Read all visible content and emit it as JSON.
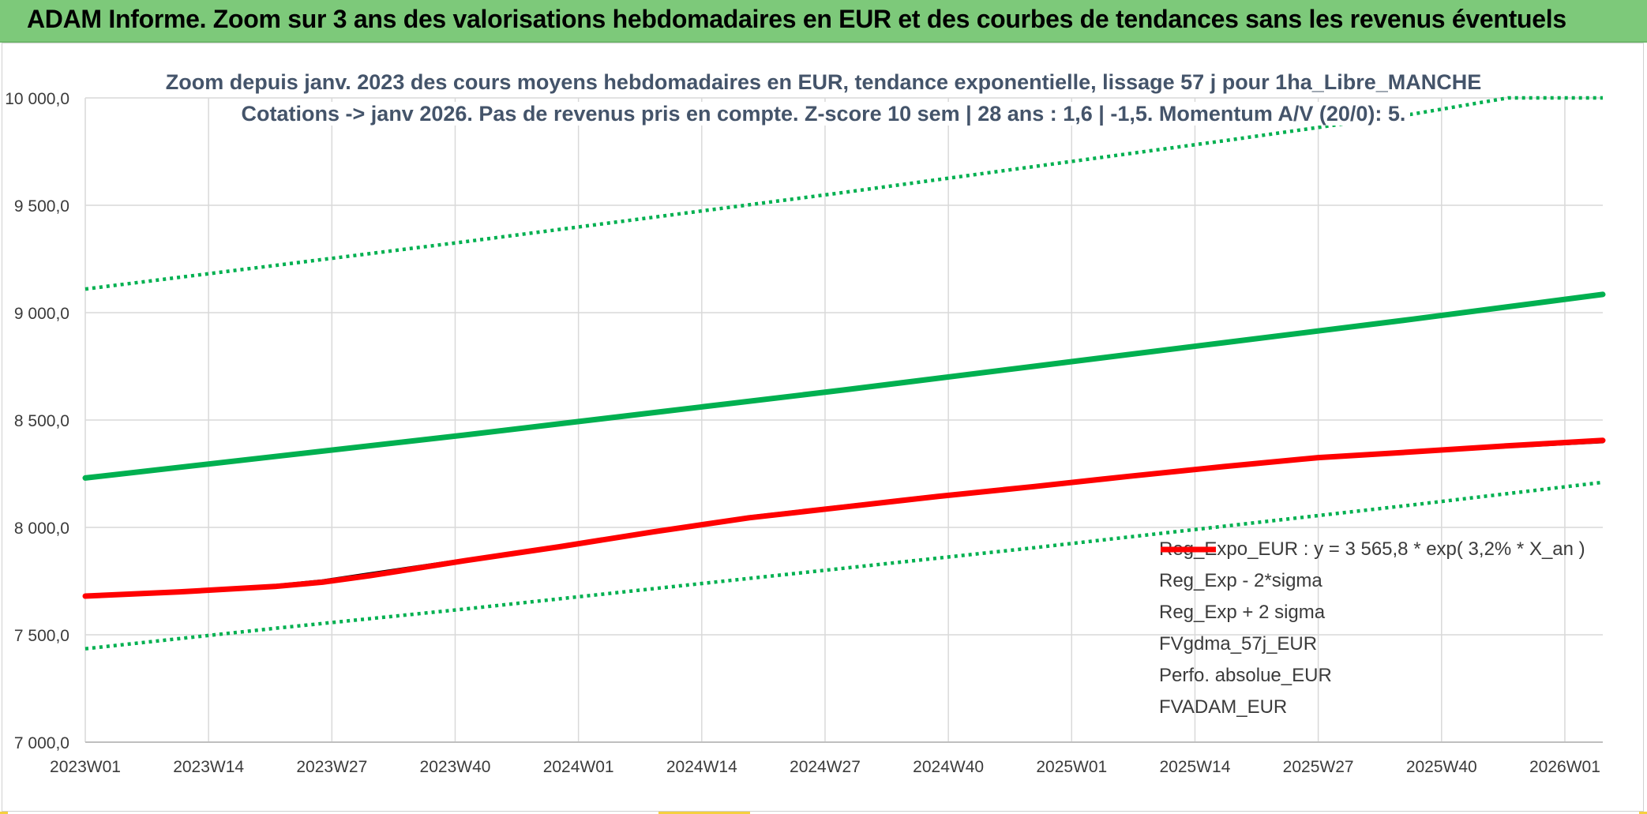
{
  "banner": {
    "title": "ADAM Informe. Zoom sur 3 ans des valorisations hebdomadaires en EUR et des courbes de tendances sans les revenus éventuels"
  },
  "colors": {
    "banner_bg": "#7dc97a",
    "reg_expo": "#00b050",
    "fvgdma": "#000000",
    "perfo": "#c00000",
    "fvadam": "#ff0000",
    "grid": "#d9d9d9",
    "title_text": "#44546a"
  },
  "chart_data": {
    "type": "line",
    "title": "Zoom depuis janv. 2023 des cours moyens hebdomadaires en EUR, tendance exponentielle, lissage 57 j pour 1ha_Libre_MANCHE",
    "subtitle": "Cotations -> janv 2026. Pas de revenus pris en compte. Z-score 10 sem | 28 ans : 1,6 | -1,5. Momentum A/V (20/0): 5.",
    "ylim": [
      7000,
      10000
    ],
    "yticks": [
      7000,
      7500,
      8000,
      8500,
      9000,
      9500,
      10000
    ],
    "ytick_labels": [
      "7 000,0",
      "7 500,0",
      "8 000,0",
      "8 500,0",
      "9 000,0",
      "9 500,0",
      "10 000,0"
    ],
    "xlim": [
      0,
      160
    ],
    "xticks": [
      0,
      13,
      26,
      39,
      52,
      65,
      78,
      91,
      104,
      117,
      130,
      143,
      156
    ],
    "xtick_labels": [
      "2023W01",
      "2023W14",
      "2023W27",
      "2023W40",
      "2024W01",
      "2024W14",
      "2024W27",
      "2024W40",
      "2025W01",
      "2025W14",
      "2025W27",
      "2025W40",
      "2026W01"
    ],
    "legend_position": "bottom-right",
    "series": [
      {
        "name": "Reg_Expo_EUR : y = 3 565,8 * exp( 3,2% *  X_an )",
        "style": "solid-thick",
        "color": "#00b050",
        "x": [
          0,
          20,
          40,
          60,
          80,
          100,
          120,
          140,
          160
        ],
        "values": [
          8230,
          8330,
          8430,
          8535,
          8640,
          8750,
          8860,
          8970,
          9085
        ]
      },
      {
        "name": "Reg_Exp - 2*sigma",
        "style": "dotted",
        "color": "#00b050",
        "x": [
          0,
          20,
          40,
          60,
          80,
          100,
          120,
          140,
          160
        ],
        "values": [
          7435,
          7530,
          7620,
          7715,
          7810,
          7905,
          8005,
          8105,
          8210
        ]
      },
      {
        "name": "Reg_Exp + 2 sigma",
        "style": "dotted",
        "color": "#00b050",
        "x": [
          0,
          20,
          40,
          60,
          80,
          100,
          120,
          140,
          150,
          160
        ],
        "values": [
          9110,
          9220,
          9330,
          9445,
          9560,
          9680,
          9800,
          9925,
          10000,
          10000
        ]
      },
      {
        "name": "FVgdma_57j_EUR",
        "style": "solid",
        "color": "#000000",
        "x": [
          0,
          10,
          20,
          25,
          30,
          40,
          50,
          60,
          70,
          80,
          90,
          100,
          110,
          120,
          130,
          140,
          150,
          160
        ],
        "values": [
          7680,
          7700,
          7730,
          7752,
          7785,
          7850,
          7915,
          7985,
          8050,
          8100,
          8150,
          8195,
          8240,
          8285,
          8325,
          8350,
          8375,
          8398
        ]
      },
      {
        "name": "Perfo. absolue_EUR",
        "style": "dotted",
        "color": "#c00000",
        "x": [
          0,
          10,
          20,
          25,
          30,
          40,
          50,
          60,
          70,
          80,
          90,
          100,
          110,
          120,
          130,
          140,
          150,
          160
        ],
        "values": [
          7680,
          7700,
          7728,
          7748,
          7780,
          7848,
          7912,
          7982,
          8048,
          8098,
          8148,
          8193,
          8240,
          8285,
          8327,
          8352,
          8380,
          8403
        ]
      },
      {
        "name": "FVADAM_EUR",
        "style": "solid-thick",
        "color": "#ff0000",
        "x": [
          0,
          10,
          20,
          25,
          30,
          40,
          50,
          60,
          70,
          80,
          90,
          100,
          110,
          120,
          130,
          140,
          150,
          160
        ],
        "values": [
          7680,
          7700,
          7725,
          7745,
          7775,
          7845,
          7910,
          7980,
          8045,
          8095,
          8145,
          8190,
          8238,
          8283,
          8325,
          8352,
          8380,
          8405
        ]
      }
    ]
  }
}
